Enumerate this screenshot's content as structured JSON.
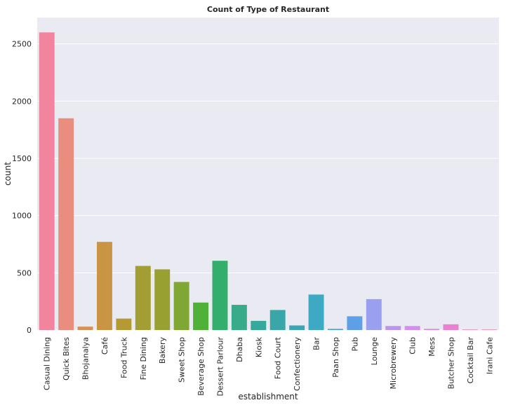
{
  "chart_data": {
    "type": "bar",
    "title": "Count of Type of Restaurant",
    "xlabel": "establishment",
    "ylabel": "count",
    "ylim": [
      0,
      2730
    ],
    "yticks": [
      0,
      500,
      1000,
      1500,
      2000,
      2500
    ],
    "grid": true,
    "legend": "none",
    "categories": [
      "Casual Dining",
      "Quick Bites",
      "Bhojanalya",
      "Café",
      "Food Truck",
      "Fine Dining",
      "Bakery",
      "Sweet Shop",
      "Beverage Shop",
      "Dessert Parlour",
      "Dhaba",
      "Kiosk",
      "Food Court",
      "Confectionery",
      "Bar",
      "Paan Shop",
      "Pub",
      "Lounge",
      "Microbrewery",
      "Club",
      "Mess",
      "Butcher Shop",
      "Cocktail Bar",
      "Irani Cafe"
    ],
    "values": [
      2600,
      1850,
      30,
      770,
      100,
      560,
      530,
      420,
      240,
      605,
      220,
      80,
      175,
      40,
      310,
      10,
      120,
      270,
      35,
      35,
      10,
      50,
      5,
      5
    ],
    "colors": [
      "#f2849e",
      "#e98e7e",
      "#d6915a",
      "#c99543",
      "#b59a33",
      "#a39e33",
      "#97a030",
      "#80a634",
      "#50b13a",
      "#34ae6d",
      "#37ab8a",
      "#37a99b",
      "#39a7a8",
      "#3ba5b5",
      "#3ea9c2",
      "#46a4d2",
      "#5e9fe8",
      "#9a9fef",
      "#bc93ef",
      "#d48eee",
      "#e284e4",
      "#ea80d2",
      "#f184bd",
      "#f387ac"
    ]
  }
}
